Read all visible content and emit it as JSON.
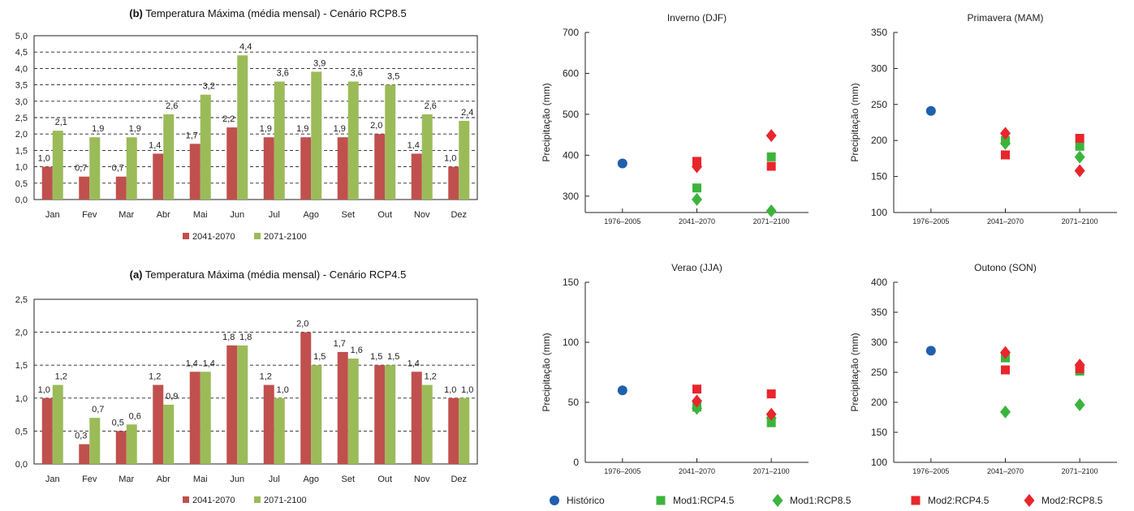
{
  "colors": {
    "s2041": "#c0504d",
    "s2071": "#9bbb59",
    "historico": "#1f5fae",
    "mod1": "#3cb43c",
    "mod2": "#e8262c"
  },
  "legend_bars": [
    "2041-2070",
    "2071-2100"
  ],
  "legend_scatter": [
    "Histórico",
    "Mod1:RCP4.5",
    "Mod1:RCP8.5",
    "Mod2:RCP4.5",
    "Mod2:RCP8.5"
  ],
  "chart_data": [
    {
      "type": "bar",
      "title_bold": "(b)",
      "title": "Temperatura Máxima (média mensal) - Cenário RCP8.5",
      "categories": [
        "Jan",
        "Fev",
        "Mar",
        "Abr",
        "Mai",
        "Jun",
        "Jul",
        "Ago",
        "Set",
        "Out",
        "Nov",
        "Dez"
      ],
      "ylim": [
        0,
        5
      ],
      "yticks": [
        "0,0",
        "0,5",
        "1,0",
        "1,5",
        "2,0",
        "2,5",
        "3,0",
        "3,5",
        "4,0",
        "4,5",
        "5,0"
      ],
      "series": [
        {
          "name": "2041-2070",
          "values": [
            1.0,
            0.7,
            0.7,
            1.4,
            1.7,
            2.2,
            1.9,
            1.9,
            1.9,
            2.0,
            1.4,
            1.0
          ],
          "labels": [
            "1,0",
            "0,7",
            "0,7",
            "1,4",
            "1,7",
            "2,2",
            "1,9",
            "1,9",
            "1,9",
            "2,0",
            "1,4",
            "1,0"
          ]
        },
        {
          "name": "2071-2100",
          "values": [
            2.1,
            1.9,
            1.9,
            2.6,
            3.2,
            4.4,
            3.6,
            3.9,
            3.6,
            3.5,
            2.6,
            2.4
          ],
          "labels": [
            "2,1",
            "1,9",
            "1,9",
            "2,6",
            "3,2",
            "4,4",
            "3,6",
            "3,9",
            "3,6",
            "3,5",
            "2,6",
            "2,4"
          ]
        }
      ],
      "grid": "dashed horizontal"
    },
    {
      "type": "bar",
      "title_bold": "(a)",
      "title": "Temperatura Máxima (média mensal) - Cenário RCP4.5",
      "categories": [
        "Jan",
        "Fev",
        "Mar",
        "Abr",
        "Mai",
        "Jun",
        "Jul",
        "Ago",
        "Set",
        "Out",
        "Nov",
        "Dez"
      ],
      "ylim": [
        0,
        2.5
      ],
      "yticks": [
        "0,0",
        "0,5",
        "1,0",
        "1,5",
        "2,0",
        "2,5"
      ],
      "series": [
        {
          "name": "2041-2070",
          "values": [
            1.0,
            0.3,
            0.5,
            1.2,
            1.4,
            1.8,
            1.2,
            2.0,
            1.7,
            1.5,
            1.4,
            1.0
          ],
          "labels": [
            "1,0",
            "0,3",
            "0,5",
            "1,2",
            "1,4",
            "1,8",
            "1,2",
            "2,0",
            "1,7",
            "1,5",
            "1,4",
            "1,0"
          ]
        },
        {
          "name": "2071-2100",
          "values": [
            1.2,
            0.7,
            0.6,
            0.9,
            1.4,
            1.8,
            1.0,
            1.5,
            1.6,
            1.5,
            1.2,
            1.0
          ],
          "labels": [
            "1,2",
            "0,7",
            "0,6",
            "0,9",
            "1,4",
            "1,8",
            "1,0",
            "1,5",
            "1,6",
            "1,5",
            "1,2",
            "1,0"
          ]
        }
      ],
      "grid": "dashed horizontal"
    },
    {
      "type": "scatter",
      "title": "Inverno (DJF)",
      "ylabel": "Precipitação (mm)",
      "categories": [
        "1976–2005",
        "2041–2070",
        "2071–2100"
      ],
      "ylim": [
        260,
        700
      ],
      "yticks": [
        300,
        400,
        500,
        600,
        700
      ],
      "series": [
        {
          "name": "Histórico",
          "marker": "circle",
          "color": "historico",
          "points": [
            [
              0,
              380
            ]
          ]
        },
        {
          "name": "Mod1:RCP4.5",
          "marker": "square",
          "color": "mod1",
          "points": [
            [
              1,
              320
            ],
            [
              2,
              396
            ]
          ]
        },
        {
          "name": "Mod1:RCP8.5",
          "marker": "diamond",
          "color": "mod1",
          "points": [
            [
              1,
              292
            ],
            [
              2,
              264
            ]
          ]
        },
        {
          "name": "Mod2:RCP4.5",
          "marker": "square",
          "color": "mod2",
          "points": [
            [
              1,
              385
            ],
            [
              2,
              373
            ]
          ]
        },
        {
          "name": "Mod2:RCP8.5",
          "marker": "diamond",
          "color": "mod2",
          "points": [
            [
              1,
              372
            ],
            [
              2,
              448
            ]
          ]
        }
      ]
    },
    {
      "type": "scatter",
      "title": "Primavera (MAM)",
      "ylabel": "Precipitação (mm)",
      "categories": [
        "1976–2005",
        "2041–2070",
        "2071–2100"
      ],
      "ylim": [
        100,
        350
      ],
      "yticks": [
        100,
        150,
        200,
        250,
        300,
        350
      ],
      "series": [
        {
          "name": "Histórico",
          "marker": "circle",
          "color": "historico",
          "points": [
            [
              0,
              241
            ]
          ]
        },
        {
          "name": "Mod1:RCP4.5",
          "marker": "square",
          "color": "mod1",
          "points": [
            [
              1,
              200
            ],
            [
              2,
              192
            ]
          ]
        },
        {
          "name": "Mod1:RCP8.5",
          "marker": "diamond",
          "color": "mod1",
          "points": [
            [
              1,
              196
            ],
            [
              2,
              177
            ]
          ]
        },
        {
          "name": "Mod2:RCP4.5",
          "marker": "square",
          "color": "mod2",
          "points": [
            [
              1,
              180
            ],
            [
              2,
              203
            ]
          ]
        },
        {
          "name": "Mod2:RCP8.5",
          "marker": "diamond",
          "color": "mod2",
          "points": [
            [
              1,
              210
            ],
            [
              2,
              158
            ]
          ]
        }
      ]
    },
    {
      "type": "scatter",
      "title": "Verao (JJA)",
      "ylabel": "Precipitação (mm)",
      "categories": [
        "1976–2005",
        "2041–2070",
        "2071–2100"
      ],
      "ylim": [
        0,
        150
      ],
      "yticks": [
        0,
        50,
        100,
        150
      ],
      "series": [
        {
          "name": "Histórico",
          "marker": "circle",
          "color": "historico",
          "points": [
            [
              0,
              60
            ]
          ]
        },
        {
          "name": "Mod1:RCP4.5",
          "marker": "square",
          "color": "mod1",
          "points": [
            [
              1,
              46
            ],
            [
              2,
              33
            ]
          ]
        },
        {
          "name": "Mod1:RCP8.5",
          "marker": "diamond",
          "color": "mod1",
          "points": [
            [
              1,
              45
            ],
            [
              2,
              37
            ]
          ]
        },
        {
          "name": "Mod2:RCP4.5",
          "marker": "square",
          "color": "mod2",
          "points": [
            [
              1,
              61
            ],
            [
              2,
              57
            ]
          ]
        },
        {
          "name": "Mod2:RCP8.5",
          "marker": "diamond",
          "color": "mod2",
          "points": [
            [
              1,
              51
            ],
            [
              2,
              40
            ]
          ]
        }
      ]
    },
    {
      "type": "scatter",
      "title": "Outono (SON)",
      "ylabel": "Precipitação (mm)",
      "categories": [
        "1976–2005",
        "2041–2070",
        "2071–2100"
      ],
      "ylim": [
        100,
        400
      ],
      "yticks": [
        100,
        150,
        200,
        250,
        300,
        350,
        400
      ],
      "series": [
        {
          "name": "Histórico",
          "marker": "circle",
          "color": "historico",
          "points": [
            [
              0,
              286
            ]
          ]
        },
        {
          "name": "Mod1:RCP4.5",
          "marker": "square",
          "color": "mod1",
          "points": [
            [
              1,
              274
            ],
            [
              2,
              252
            ]
          ]
        },
        {
          "name": "Mod1:RCP8.5",
          "marker": "diamond",
          "color": "mod1",
          "points": [
            [
              1,
              184
            ],
            [
              2,
              196
            ]
          ]
        },
        {
          "name": "Mod2:RCP4.5",
          "marker": "square",
          "color": "mod2",
          "points": [
            [
              1,
              254
            ],
            [
              2,
              256
            ]
          ]
        },
        {
          "name": "Mod2:RCP8.5",
          "marker": "diamond",
          "color": "mod2",
          "points": [
            [
              1,
              283
            ],
            [
              2,
              262
            ]
          ]
        }
      ]
    }
  ]
}
